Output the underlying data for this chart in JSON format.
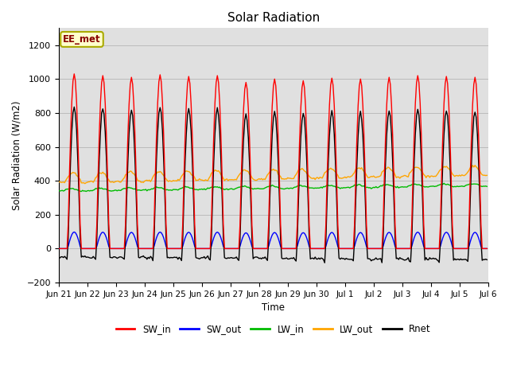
{
  "title": "Solar Radiation",
  "ylabel": "Solar Radiation (W/m2)",
  "xlabel": "Time",
  "annotation": "EE_met",
  "ylim": [
    -200,
    1300
  ],
  "yticks": [
    -200,
    0,
    200,
    400,
    600,
    800,
    1000,
    1200
  ],
  "colors": {
    "SW_in": "#ff0000",
    "SW_out": "#0000ff",
    "LW_in": "#00bb00",
    "LW_out": "#ffa500",
    "Rnet": "#000000"
  },
  "linewidth": 1.0,
  "grid_color": "#bbbbbb",
  "bg_plot": "#e0e0e0",
  "bg_fig": "#ffffff",
  "annotation_bg": "#ffffcc",
  "annotation_fg": "#880000",
  "annotation_border": "#aaaa00"
}
